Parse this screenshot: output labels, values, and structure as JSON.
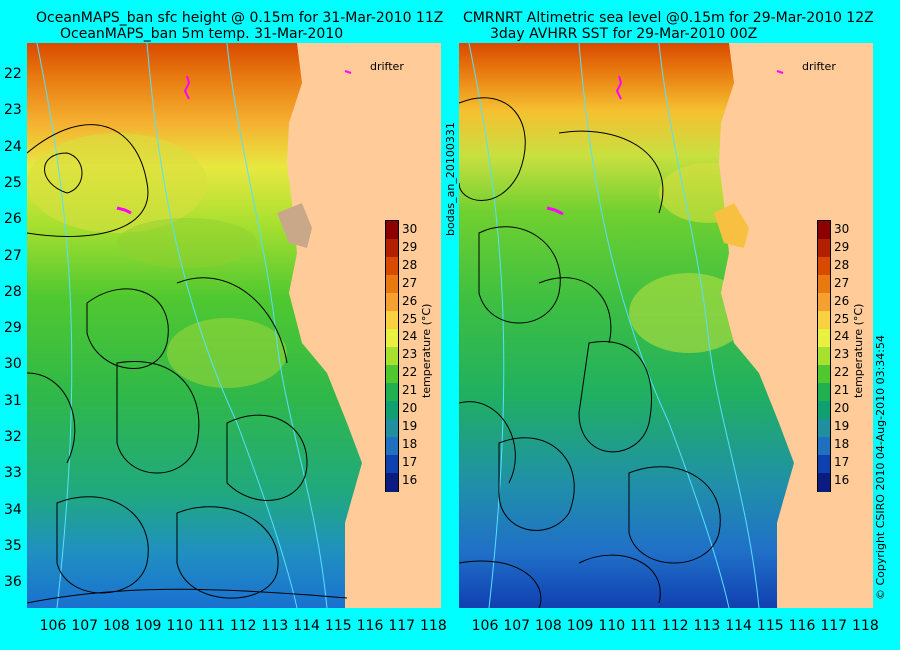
{
  "left_panel": {
    "title_line1": "OceanMAPS_ban sfc height @ 0.15m for 31-Mar-2010 11Z",
    "title_line2": "OceanMAPS_ban 5m temp. 31-Mar-2010",
    "drifter_label": "drifter"
  },
  "right_panel": {
    "title_line1": "CMRNRT Altimetric sea level  @0.15m  for 29-Mar-2010 12Z",
    "title_line2": "3day AVHRR SST for 29-Mar-2010 00Z",
    "drifter_label": "drifter"
  },
  "vertical_labels": {
    "run_id": "bodas_an_20100331",
    "copyright": "© Copyright CSIRO 2010   04-Aug-2010 03:34:54"
  },
  "colorbar": {
    "label": "temperature (°C)",
    "ticks": [
      "30",
      "29",
      "28",
      "27",
      "26",
      "25",
      "24",
      "23",
      "22",
      "21",
      "20",
      "19",
      "18",
      "17",
      "16"
    ],
    "colors": [
      "#8b0000",
      "#b22000",
      "#d84a00",
      "#e87a10",
      "#f5a030",
      "#f8d040",
      "#e8f040",
      "#a8e030",
      "#50c830",
      "#20b050",
      "#10a070",
      "#2090a0",
      "#2070c0",
      "#1040b0",
      "#0a1c80"
    ]
  },
  "latitude_ticks": [
    "22",
    "23",
    "24",
    "25",
    "26",
    "27",
    "28",
    "29",
    "30",
    "31",
    "32",
    "33",
    "34",
    "35",
    "36"
  ],
  "longitude_ticks": [
    "106",
    "107",
    "108",
    "109",
    "110",
    "111",
    "112",
    "113",
    "114",
    "115",
    "116",
    "117",
    "118"
  ],
  "colors": {
    "background": "#00ffff",
    "land": "#ffcc99",
    "contour": "#000000",
    "isobath": "#55e0ff",
    "drifter": "#ff00ff"
  }
}
